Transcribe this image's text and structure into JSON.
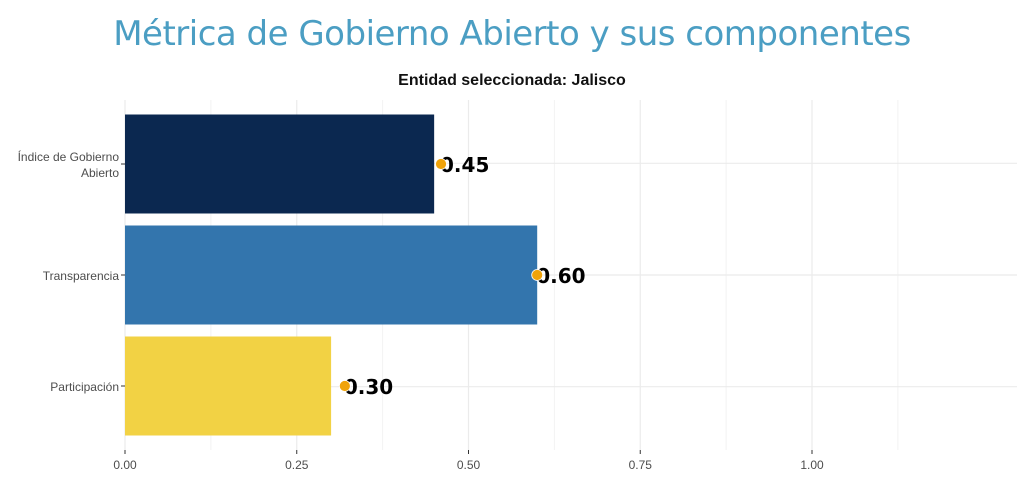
{
  "chart_data": {
    "type": "bar",
    "orientation": "horizontal",
    "title": "Métrica de Gobierno Abierto y sus componentes",
    "subtitle": "Entidad seleccionada: Jalisco",
    "xlabel": "",
    "ylabel": "",
    "categories": [
      "Índice de Gobierno Abierto",
      "Transparencia",
      "Participación"
    ],
    "category_lines": [
      [
        "Índice de Gobierno",
        "Abierto"
      ],
      [
        "Transparencia"
      ],
      [
        "Participación"
      ]
    ],
    "values": [
      0.45,
      0.6,
      0.3
    ],
    "value_labels": [
      "0.45",
      "0.60",
      "0.30"
    ],
    "points": [
      0.46,
      0.6,
      0.32
    ],
    "colors": [
      "#0b2850",
      "#3375ad",
      "#f2d244"
    ],
    "point_color": "#f0a30a",
    "xlim": [
      0,
      1.3
    ],
    "xticks": [
      0,
      0.25,
      0.5,
      0.75,
      1.0
    ],
    "xtick_labels": [
      "0.00",
      "0.25",
      "0.50",
      "0.75",
      "1.00"
    ],
    "grid": true,
    "legend": "none"
  }
}
